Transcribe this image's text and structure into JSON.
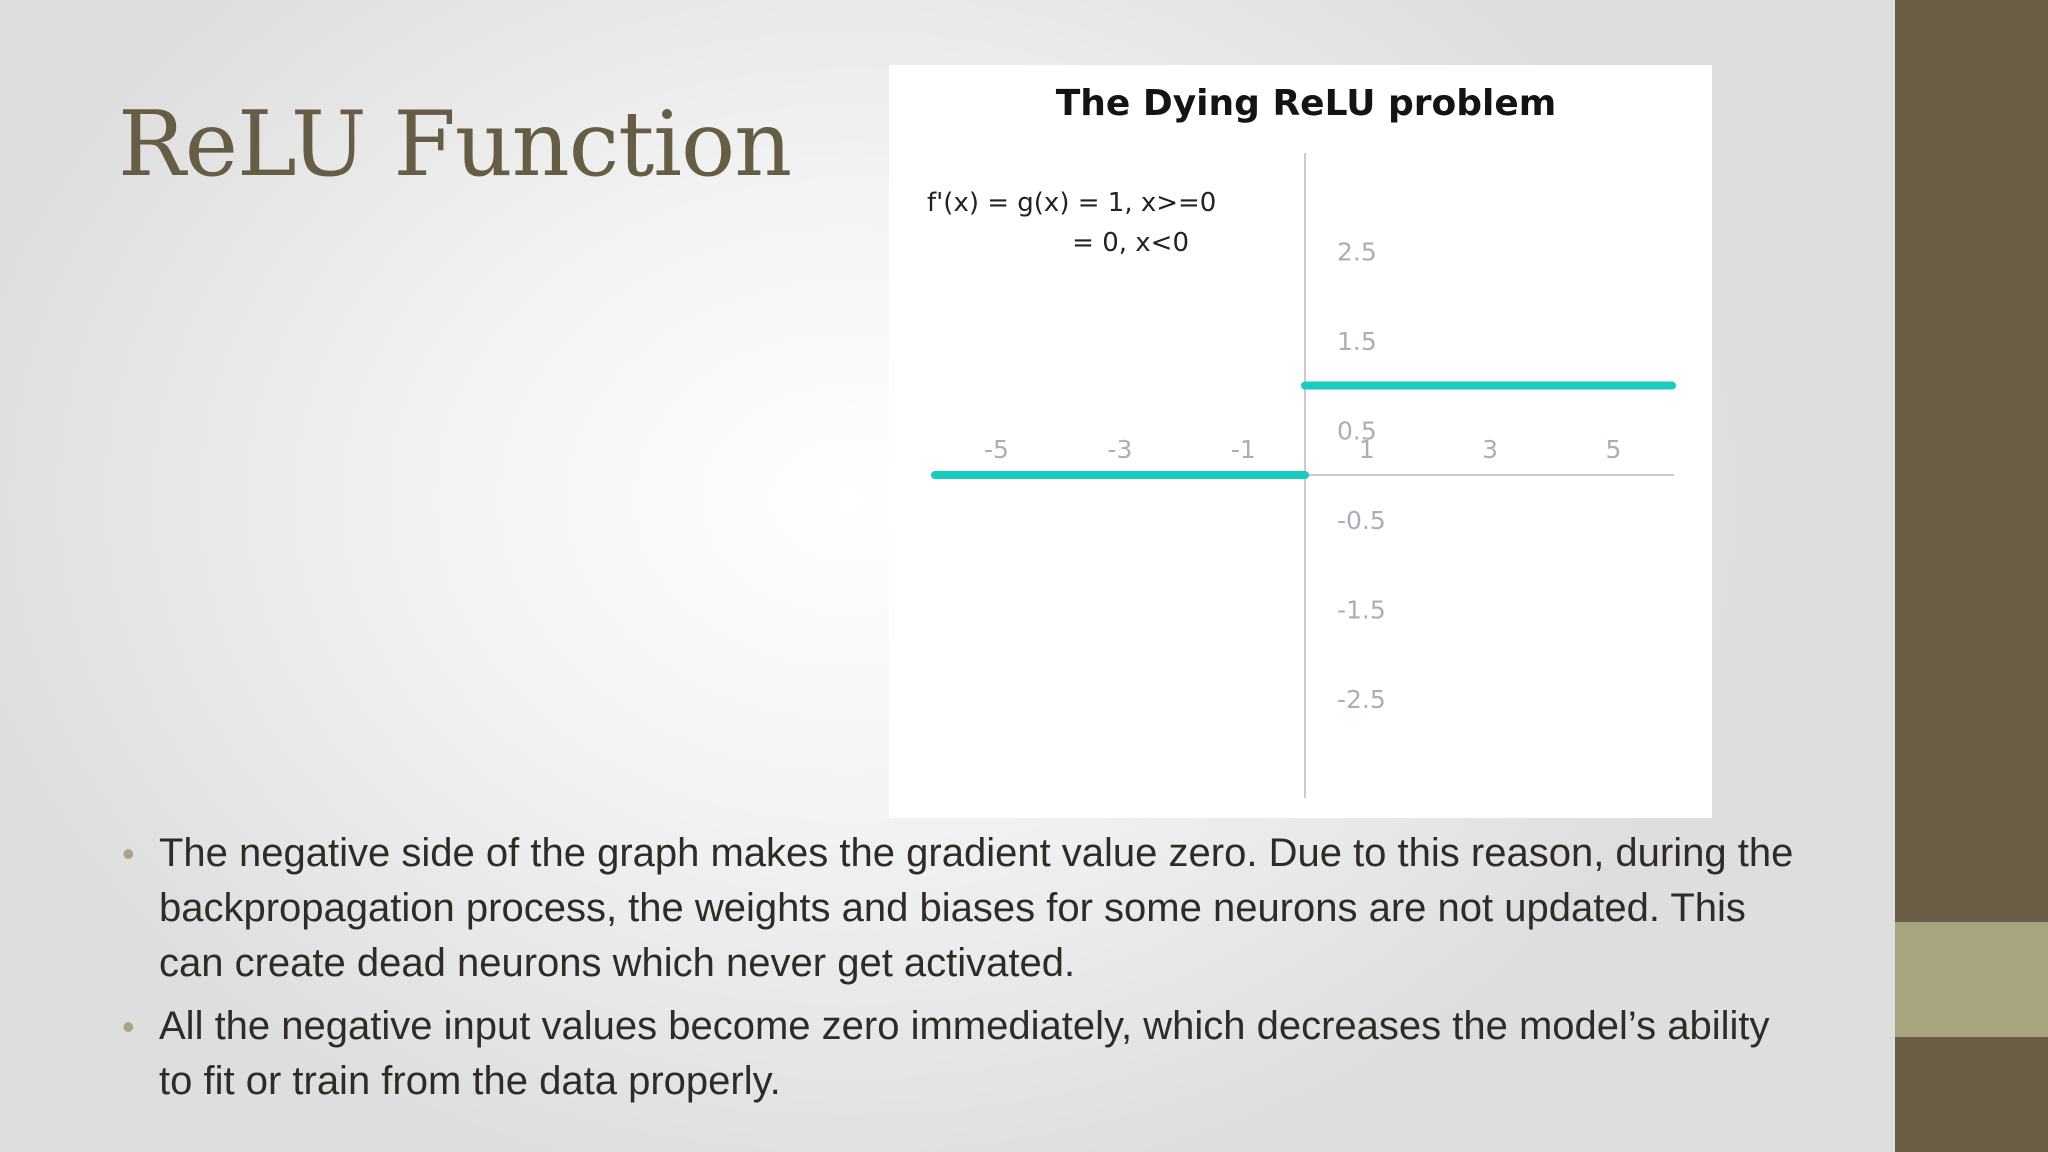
{
  "slide": {
    "title": "ReLU Function",
    "bullets": [
      "The negative side of the graph makes the gradient value zero. Due to this reason, during the backpropagation process, the weights and biases for some neurons are not updated. This can create dead neurons which never get activated.",
      "All the negative input values become zero immediately, which decreases the model’s ability to fit or train from the data properly."
    ],
    "bullet_marker": "•"
  },
  "colors": {
    "title": "#655d45",
    "sidebar": "#6b5e46",
    "accent": "#a8a47e",
    "curve": "#1ccbbf"
  },
  "chart_data": {
    "type": "line",
    "title": "The Dying ReLU problem",
    "annotation_lines": [
      "f'(x) = g(x) = 1, x>=0",
      "= 0, x<0"
    ],
    "x_ticks": [
      -5,
      -3,
      -1,
      1,
      3,
      5
    ],
    "y_ticks": [
      2.5,
      1.5,
      0.5,
      -0.5,
      -1.5,
      -2.5
    ],
    "x_tick_labels": [
      "-5",
      "-3",
      "-1",
      "1",
      "3",
      "5"
    ],
    "y_tick_labels": [
      "2.5",
      "1.5",
      "0.5",
      "-0.5",
      "-1.5",
      "-2.5"
    ],
    "xlim": [
      -6,
      6
    ],
    "ylim": [
      -3.5,
      3.5
    ],
    "series": [
      {
        "x": [
          -6,
          0
        ],
        "y": [
          0,
          0
        ]
      },
      {
        "x": [
          0,
          6
        ],
        "y": [
          1,
          1
        ]
      }
    ],
    "grid": false,
    "legend": "none"
  }
}
